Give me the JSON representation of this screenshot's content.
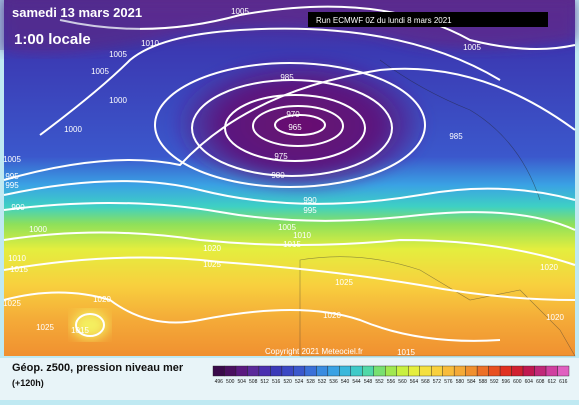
{
  "header": {
    "date": "samedi 13 mars 2021",
    "time": "1:00 locale",
    "run": "Run ECMWF 0Z du lundi 8 mars 2021"
  },
  "isobar_labels": [
    "1005",
    "1010",
    "1005",
    "1005",
    "1000",
    "1000",
    "1005",
    "995",
    "995",
    "990",
    "1000",
    "985",
    "970",
    "965",
    "975",
    "980",
    "985",
    "1005",
    "990",
    "995",
    "1005",
    "1010",
    "1015",
    "1020",
    "1025",
    "1010",
    "1015",
    "1025",
    "1020",
    "1025",
    "1015",
    "1025",
    "1020",
    "1015",
    "1020",
    "1020"
  ],
  "copyright": "Copyright 2021 Meteociel.fr",
  "legend": {
    "title": "Géop. z500, pression niveau mer",
    "lead": "(+120h)",
    "scale": [
      496,
      500,
      504,
      508,
      512,
      516,
      520,
      524,
      528,
      532,
      536,
      540,
      544,
      548,
      552,
      556,
      560,
      564,
      568,
      572,
      576,
      580,
      584,
      588,
      592,
      596,
      600,
      604,
      608,
      612,
      616
    ]
  }
}
